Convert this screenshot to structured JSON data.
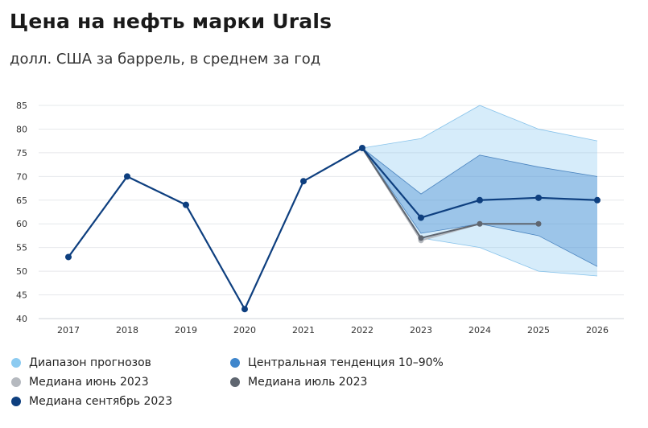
{
  "title": "Цена на нефть марки Urals",
  "subtitle": "долл. США за баррель, в среднем за год",
  "colors": {
    "range": "#7fc4ef",
    "central": "#3f86cc",
    "median_june": "#b5b9bf",
    "median_july": "#5f6670",
    "median_sept": "#0e3f7f"
  },
  "legend": [
    {
      "label": "Диапазон прогнозов",
      "color": "#8ccbf1"
    },
    {
      "label": "Центральная тенденция 10–90%",
      "color": "#3f86cc"
    },
    {
      "label": "Медиана июнь 2023",
      "color": "#b5b9bf"
    },
    {
      "label": "Медиана июль 2023",
      "color": "#5f6670"
    },
    {
      "label": "Медиана сентябрь 2023",
      "color": "#0e3f7f"
    }
  ],
  "chart_data": {
    "type": "line",
    "categories": [
      "2017",
      "2018",
      "2019",
      "2020",
      "2021",
      "2022",
      "2023",
      "2024",
      "2025",
      "2026"
    ],
    "ylim": [
      40,
      85
    ],
    "yticks": [
      40,
      45,
      50,
      55,
      60,
      65,
      70,
      75,
      80,
      85
    ],
    "grid": true,
    "series": [
      {
        "name": "Медиана сентябрь 2023",
        "values": [
          53,
          70,
          64,
          42,
          69,
          76,
          61.3,
          65,
          65.5,
          65
        ]
      },
      {
        "name": "Медиана июнь 2023",
        "values": [
          null,
          null,
          null,
          null,
          null,
          76,
          56.5,
          60,
          null,
          null
        ]
      },
      {
        "name": "Медиана июль 2023",
        "values": [
          null,
          null,
          null,
          null,
          null,
          76,
          57,
          60,
          60,
          null
        ]
      }
    ],
    "bands": [
      {
        "name": "Диапазон прогнозов",
        "low": [
          null,
          null,
          null,
          null,
          null,
          76,
          57,
          55,
          50,
          49
        ],
        "high": [
          null,
          null,
          null,
          null,
          null,
          76,
          78,
          85,
          80,
          77.5
        ]
      },
      {
        "name": "Центральная тенденция 10–90%",
        "low": [
          null,
          null,
          null,
          null,
          null,
          76,
          58,
          60,
          57.5,
          51
        ],
        "high": [
          null,
          null,
          null,
          null,
          null,
          76,
          66.3,
          74.5,
          72,
          70
        ]
      }
    ]
  }
}
